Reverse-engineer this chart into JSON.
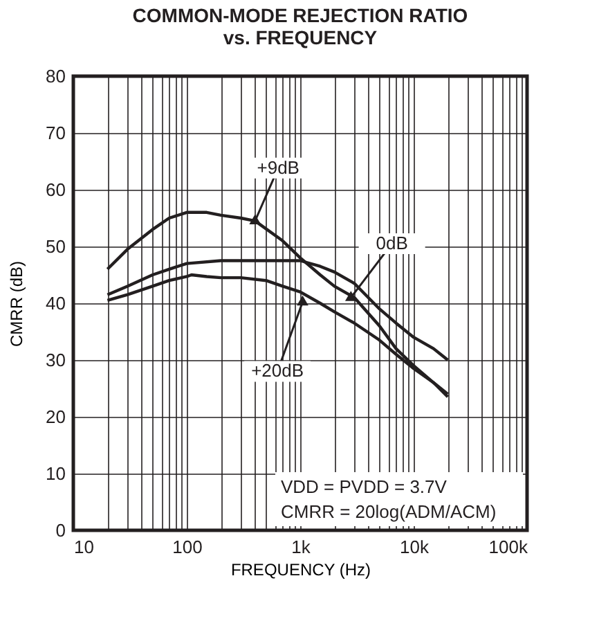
{
  "chart_data": {
    "type": "line",
    "title": [
      "COMMON-MODE REJECTION RATIO",
      "vs. FREQUENCY"
    ],
    "xlabel": "FREQUENCY (Hz)",
    "ylabel": "CMRR (dB)",
    "log": "x",
    "grid": true,
    "marker": "none",
    "line_style": "solid",
    "xlim": [
      10,
      100000
    ],
    "ylim": [
      0,
      80
    ],
    "xticks": [
      10,
      {
        "value": 20,
        "label": null
      },
      {
        "value": 30,
        "label": null
      },
      {
        "value": 40,
        "label": null
      },
      {
        "value": 50,
        "label": null
      },
      {
        "value": 60,
        "label": null
      },
      {
        "value": 70,
        "label": null
      },
      {
        "value": 80,
        "label": null
      },
      {
        "value": 90,
        "label": null
      },
      100,
      {
        "value": 200,
        "label": null
      },
      {
        "value": 300,
        "label": null
      },
      {
        "value": 400,
        "label": null
      },
      {
        "value": 500,
        "label": null
      },
      {
        "value": 600,
        "label": null
      },
      {
        "value": 700,
        "label": null
      },
      {
        "value": 800,
        "label": null
      },
      {
        "value": 900,
        "label": null
      },
      {
        "value": 1000,
        "label": "1k"
      },
      {
        "value": 2000,
        "label": null
      },
      {
        "value": 3000,
        "label": null
      },
      {
        "value": 4000,
        "label": null
      },
      {
        "value": 5000,
        "label": null
      },
      {
        "value": 6000,
        "label": null
      },
      {
        "value": 7000,
        "label": null
      },
      {
        "value": 8000,
        "label": null
      },
      {
        "value": 9000,
        "label": null
      },
      {
        "value": 10000,
        "label": "10k"
      },
      {
        "value": 20000,
        "label": null
      },
      {
        "value": 30000,
        "label": null
      },
      {
        "value": 40000,
        "label": null
      },
      {
        "value": 50000,
        "label": null
      },
      {
        "value": 60000,
        "label": null
      },
      {
        "value": 70000,
        "label": null
      },
      {
        "value": 80000,
        "label": null
      },
      {
        "value": 90000,
        "label": null
      },
      {
        "value": 100000,
        "label": "100k"
      }
    ],
    "yticks": [
      0,
      10,
      20,
      30,
      40,
      50,
      60,
      70,
      80
    ],
    "series": [
      {
        "color": "#231f20",
        "x": [
          20,
          30,
          50,
          70,
          100,
          150,
          200,
          300,
          400,
          700,
          1000,
          1500,
          2000,
          3000,
          5000,
          7000,
          10000,
          15000,
          20000
        ],
        "values": [
          46,
          49.5,
          53,
          55,
          56,
          56,
          55.5,
          55,
          54.5,
          51,
          48,
          45,
          43,
          41,
          36,
          32,
          29,
          26,
          23.5
        ]
      },
      {
        "color": "#231f20",
        "x": [
          20,
          30,
          50,
          70,
          100,
          200,
          300,
          500,
          1000,
          1500,
          2000,
          3000,
          5000,
          7000,
          10000,
          15000,
          20000
        ],
        "values": [
          41.5,
          43,
          45,
          46,
          47,
          47.5,
          47.5,
          47.5,
          47.5,
          46.5,
          45.5,
          43.5,
          39,
          36.5,
          34,
          32,
          30
        ]
      },
      {
        "color": "#231f20",
        "x": [
          20,
          30,
          50,
          70,
          100,
          110,
          150,
          200,
          300,
          500,
          700,
          1000,
          1500,
          2000,
          3000,
          5000,
          7000,
          10000,
          15000,
          20000
        ],
        "values": [
          40.5,
          41.5,
          43,
          44,
          44.7,
          45,
          44.7,
          44.5,
          44.5,
          44,
          43,
          42,
          40,
          38.5,
          36.5,
          33.5,
          31,
          28.5,
          26,
          24
        ]
      }
    ],
    "annotations": [
      {
        "text": "+9dB",
        "x": 400,
        "y": 54.5
      },
      {
        "text": "0dB",
        "x": 2800,
        "y": 41
      },
      {
        "text": "+20dB",
        "x": 1050,
        "y": 40.2
      },
      "VDD = PVDD = 3.7V",
      "CMRR = 20log(ADM/ACM)"
    ]
  }
}
